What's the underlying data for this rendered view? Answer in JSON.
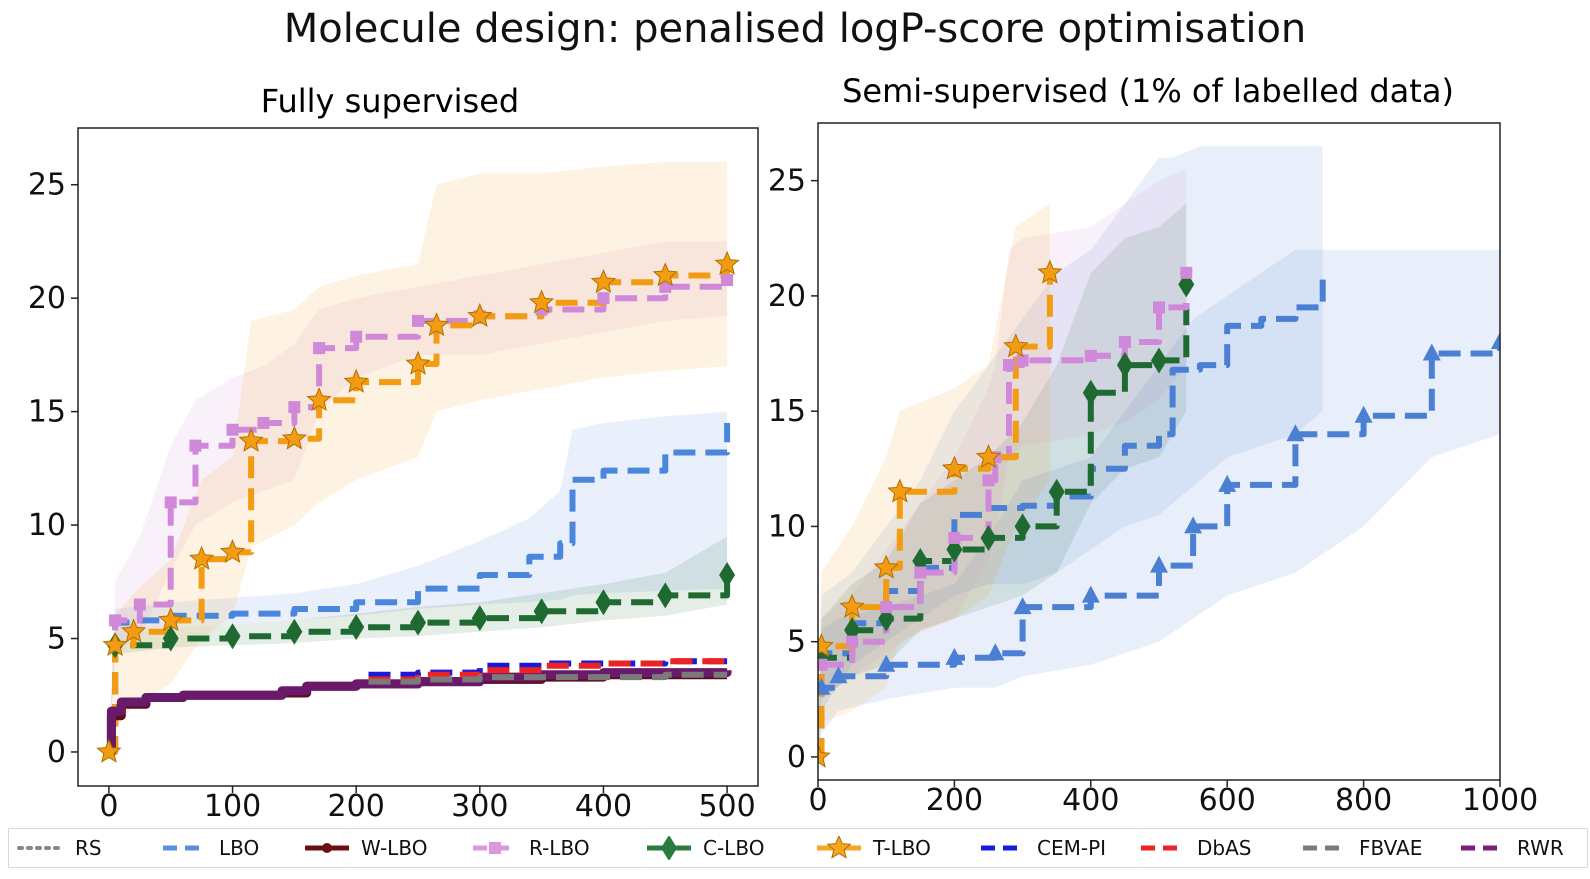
{
  "figure_title": "Molecule design: penalised logP-score optimisation",
  "legend": [
    {
      "label": "RS",
      "color": "#888888",
      "dash": "dot",
      "marker": ""
    },
    {
      "label": "LBO",
      "color": "#5b8ee0",
      "dash": "dash",
      "marker": ""
    },
    {
      "label": "W-LBO",
      "color": "#6b0f12",
      "dash": "solid",
      "marker": "circle"
    },
    {
      "label": "R-LBO",
      "color": "#dc98dc",
      "dash": "dash",
      "marker": "square"
    },
    {
      "label": "C-LBO",
      "color": "#2b7a3e",
      "dash": "solid",
      "marker": "diamond"
    },
    {
      "label": "T-LBO",
      "color": "#f5a623",
      "dash": "solid",
      "marker": "star"
    },
    {
      "label": "CEM-PI",
      "color": "#1a1adc",
      "dash": "dash",
      "marker": ""
    },
    {
      "label": "DbAS",
      "color": "#ee2222",
      "dash": "dash",
      "marker": ""
    },
    {
      "label": "FBVAE",
      "color": "#7a7a7a",
      "dash": "dash",
      "marker": ""
    },
    {
      "label": "RWR",
      "color": "#7b1d7b",
      "dash": "dash",
      "marker": ""
    }
  ],
  "chart_data": [
    {
      "type": "line",
      "title": "Fully supervised",
      "xlabel": "",
      "ylabel": "",
      "xlim": [
        -25,
        525
      ],
      "ylim": [
        -1.5,
        27.5
      ],
      "xticks": [
        0,
        100,
        200,
        300,
        400,
        500
      ],
      "yticks": [
        0,
        5,
        10,
        15,
        20,
        25
      ],
      "grid": false,
      "series": [
        {
          "name": "LBO",
          "color": "#4a86dc",
          "marker": "",
          "x": [
            0,
            5,
            20,
            50,
            100,
            150,
            200,
            250,
            300,
            340,
            365,
            375,
            400,
            450,
            500
          ],
          "y": [
            0,
            5.7,
            5.8,
            6.0,
            6.1,
            6.3,
            6.6,
            7.2,
            7.8,
            8.6,
            9.2,
            12.0,
            12.4,
            13.2,
            14.5
          ],
          "lower": [
            0,
            5.2,
            5.3,
            5.5,
            5.6,
            5.8,
            6.0,
            6.3,
            6.5,
            6.6,
            6.7,
            6.9,
            7.0,
            7.1,
            7.2
          ],
          "upper": [
            0,
            6.3,
            6.4,
            6.6,
            6.8,
            7.0,
            7.4,
            8.2,
            9.3,
            10.3,
            11.5,
            14.2,
            14.5,
            14.8,
            15.0
          ]
        },
        {
          "name": "C-LBO",
          "color": "#1e6a30",
          "marker": "diamond",
          "x": [
            0,
            5,
            50,
            100,
            150,
            200,
            250,
            300,
            350,
            400,
            450,
            500
          ],
          "y": [
            0,
            4.7,
            5.0,
            5.1,
            5.3,
            5.5,
            5.7,
            5.9,
            6.2,
            6.6,
            6.9,
            7.8
          ],
          "lower": [
            0,
            4.3,
            4.6,
            4.7,
            4.8,
            5.0,
            5.1,
            5.3,
            5.5,
            5.8,
            6.0,
            6.5
          ],
          "upper": [
            0,
            5.2,
            5.5,
            5.6,
            5.8,
            6.1,
            6.4,
            6.6,
            7.0,
            7.4,
            7.9,
            9.5
          ]
        },
        {
          "name": "R-LBO",
          "color": "#d088d8",
          "marker": "square",
          "x": [
            0,
            5,
            25,
            50,
            70,
            100,
            125,
            150,
            170,
            200,
            250,
            300,
            350,
            400,
            450,
            500
          ],
          "y": [
            0,
            5.8,
            6.5,
            11.0,
            13.5,
            14.2,
            14.5,
            15.2,
            17.8,
            18.3,
            19.0,
            19.2,
            19.5,
            20.0,
            20.5,
            20.8
          ],
          "lower": [
            0,
            4.5,
            5.0,
            8.0,
            10.0,
            11.0,
            11.5,
            12.0,
            15.0,
            16.5,
            17.5,
            17.5,
            18.0,
            18.5,
            19.0,
            19.2
          ],
          "upper": [
            0,
            7.5,
            9.5,
            13.5,
            15.5,
            16.5,
            17.0,
            18.0,
            19.5,
            20.0,
            20.5,
            21.0,
            21.5,
            22.0,
            22.5,
            22.5
          ]
        },
        {
          "name": "T-LBO",
          "color": "#f39c12",
          "marker": "star",
          "x": [
            0,
            5,
            20,
            50,
            75,
            100,
            115,
            150,
            170,
            200,
            250,
            265,
            300,
            350,
            400,
            450,
            500
          ],
          "y": [
            0,
            4.7,
            5.3,
            5.8,
            8.5,
            8.8,
            13.7,
            13.8,
            15.5,
            16.3,
            17.1,
            18.8,
            19.2,
            19.8,
            20.7,
            21.0,
            21.5
          ],
          "lower": [
            0,
            1.0,
            2.0,
            3.0,
            5.0,
            6.0,
            9.0,
            10.0,
            11.0,
            12.0,
            13.0,
            15.0,
            15.5,
            16.0,
            16.5,
            16.8,
            17.0
          ],
          "upper": [
            0,
            6.0,
            7.0,
            8.5,
            12.0,
            13.0,
            19.0,
            19.5,
            20.5,
            21.0,
            21.5,
            25.0,
            25.5,
            25.5,
            25.8,
            26.0,
            26.0
          ]
        },
        {
          "name": "W-LBO",
          "color": "#5a0e1e",
          "marker": "",
          "x": [
            0,
            2,
            10,
            30,
            60,
            100,
            140,
            160,
            200,
            250,
            300,
            350,
            400,
            450,
            500
          ],
          "y": [
            0,
            1.6,
            2.1,
            2.4,
            2.5,
            2.5,
            2.6,
            2.9,
            3.0,
            3.1,
            3.2,
            3.3,
            3.4,
            3.4,
            3.4
          ]
        },
        {
          "name": "RWR",
          "color": "#6a1a6a",
          "marker": "",
          "x": [
            0,
            2,
            10,
            30,
            60,
            100,
            140,
            160,
            200,
            250,
            300,
            350,
            400,
            450,
            500
          ],
          "y": [
            0,
            1.8,
            2.2,
            2.4,
            2.5,
            2.5,
            2.7,
            2.9,
            3.0,
            3.1,
            3.3,
            3.4,
            3.5,
            3.5,
            3.6
          ]
        },
        {
          "name": "CEM-PI",
          "color": "#1a1adc",
          "marker": "",
          "x": [
            210,
            250,
            300,
            350,
            400,
            450,
            500
          ],
          "y": [
            3.4,
            3.5,
            3.8,
            3.9,
            3.9,
            4.0,
            4.0
          ]
        },
        {
          "name": "DbAS",
          "color": "#ee2222",
          "marker": "",
          "x": [
            210,
            250,
            300,
            350,
            400,
            450,
            500
          ],
          "y": [
            3.2,
            3.4,
            3.6,
            3.8,
            3.9,
            4.0,
            4.1
          ]
        },
        {
          "name": "FBVAE",
          "color": "#7a7a7a",
          "marker": "",
          "x": [
            210,
            250,
            300,
            350,
            400,
            450,
            500
          ],
          "y": [
            3.1,
            3.2,
            3.3,
            3.3,
            3.3,
            3.4,
            3.4
          ]
        }
      ]
    },
    {
      "type": "line",
      "title": "Semi-supervised (1% of labelled data)",
      "xlabel": "",
      "ylabel": "",
      "xlim": [
        0,
        1000
      ],
      "ylim": [
        -1.0,
        27.5
      ],
      "xticks": [
        0,
        200,
        400,
        600,
        800,
        1000
      ],
      "yticks": [
        0,
        5,
        10,
        15,
        20,
        25
      ],
      "grid": false,
      "series": [
        {
          "name": "LBO (triangle)",
          "color": "#4a7fd4",
          "marker": "triangle",
          "x": [
            0,
            5,
            30,
            100,
            200,
            260,
            300,
            400,
            500,
            550,
            600,
            700,
            800,
            900,
            1000
          ],
          "y": [
            0,
            3.0,
            3.5,
            4.0,
            4.3,
            4.5,
            6.5,
            7.0,
            8.3,
            10.0,
            11.8,
            14.0,
            14.8,
            17.5,
            18.0
          ],
          "lower": [
            0,
            1.0,
            2.0,
            2.5,
            3.0,
            3.0,
            3.5,
            4.0,
            5.0,
            6.0,
            7.0,
            8.0,
            10.0,
            13.0,
            14.0
          ],
          "upper": [
            0,
            5.5,
            6.0,
            6.5,
            7.5,
            10.0,
            12.0,
            13.0,
            17.0,
            19.0,
            20.0,
            22.0,
            22.0,
            22.0,
            22.0
          ]
        },
        {
          "name": "LBO",
          "color": "#4a7fd4",
          "marker": "",
          "x": [
            0,
            5,
            50,
            100,
            150,
            200,
            250,
            300,
            350,
            400,
            450,
            500,
            520,
            560,
            600,
            650,
            700,
            740
          ],
          "y": [
            0,
            4.5,
            5.8,
            7.2,
            8.2,
            10.5,
            10.8,
            10.9,
            11.3,
            12.5,
            13.5,
            14.0,
            16.8,
            17.0,
            18.7,
            19.0,
            19.5,
            21.0
          ],
          "lower": [
            0,
            2.0,
            4.0,
            5.0,
            6.0,
            7.0,
            7.5,
            7.5,
            8.0,
            9.0,
            10.0,
            10.5,
            11.0,
            12.0,
            13.0,
            13.5,
            14.0,
            15.0
          ],
          "upper": [
            0,
            7.0,
            8.0,
            10.0,
            12.0,
            15.0,
            17.0,
            19.0,
            21.0,
            22.0,
            24.0,
            26.0,
            26.0,
            26.5,
            26.5,
            26.5,
            26.5,
            26.5
          ]
        },
        {
          "name": "C-LBO",
          "color": "#1e6a30",
          "marker": "diamond",
          "x": [
            0,
            5,
            50,
            100,
            150,
            200,
            250,
            300,
            350,
            400,
            450,
            500,
            540
          ],
          "y": [
            0,
            4.3,
            5.5,
            6.0,
            8.5,
            9.0,
            9.5,
            10.0,
            11.5,
            15.8,
            17.0,
            17.2,
            20.5
          ],
          "lower": [
            0,
            2.5,
            3.5,
            4.0,
            5.5,
            6.0,
            6.5,
            7.0,
            8.0,
            11.0,
            12.5,
            13.0,
            15.0
          ],
          "upper": [
            0,
            6.0,
            7.5,
            8.5,
            11.0,
            12.0,
            13.0,
            14.5,
            17.0,
            21.0,
            22.5,
            23.0,
            24.0
          ]
        },
        {
          "name": "R-LBO",
          "color": "#d088d8",
          "marker": "square",
          "x": [
            0,
            5,
            50,
            100,
            150,
            200,
            250,
            260,
            280,
            300,
            400,
            450,
            500,
            540
          ],
          "y": [
            0,
            4.0,
            5.0,
            6.5,
            8.0,
            9.5,
            12.0,
            13.0,
            17.0,
            17.2,
            17.4,
            18.0,
            19.5,
            21.0
          ],
          "lower": [
            0,
            2.5,
            3.5,
            4.5,
            5.5,
            6.0,
            8.5,
            9.5,
            13.0,
            13.5,
            14.0,
            14.5,
            15.5,
            17.0
          ],
          "upper": [
            0,
            6.0,
            7.0,
            9.0,
            11.0,
            13.0,
            16.0,
            17.0,
            22.0,
            22.5,
            23.0,
            24.0,
            25.0,
            25.5
          ]
        },
        {
          "name": "T-LBO",
          "color": "#f39c12",
          "marker": "star",
          "x": [
            0,
            5,
            50,
            100,
            120,
            200,
            250,
            290,
            340
          ],
          "y": [
            0,
            4.8,
            6.5,
            8.2,
            11.5,
            12.5,
            13.0,
            17.8,
            21.0
          ],
          "lower": [
            0,
            1.5,
            2.0,
            3.0,
            5.0,
            6.0,
            7.0,
            10.0,
            12.0
          ],
          "upper": [
            0,
            8.0,
            10.0,
            13.0,
            15.0,
            16.0,
            17.0,
            23.0,
            24.0
          ]
        }
      ]
    }
  ]
}
